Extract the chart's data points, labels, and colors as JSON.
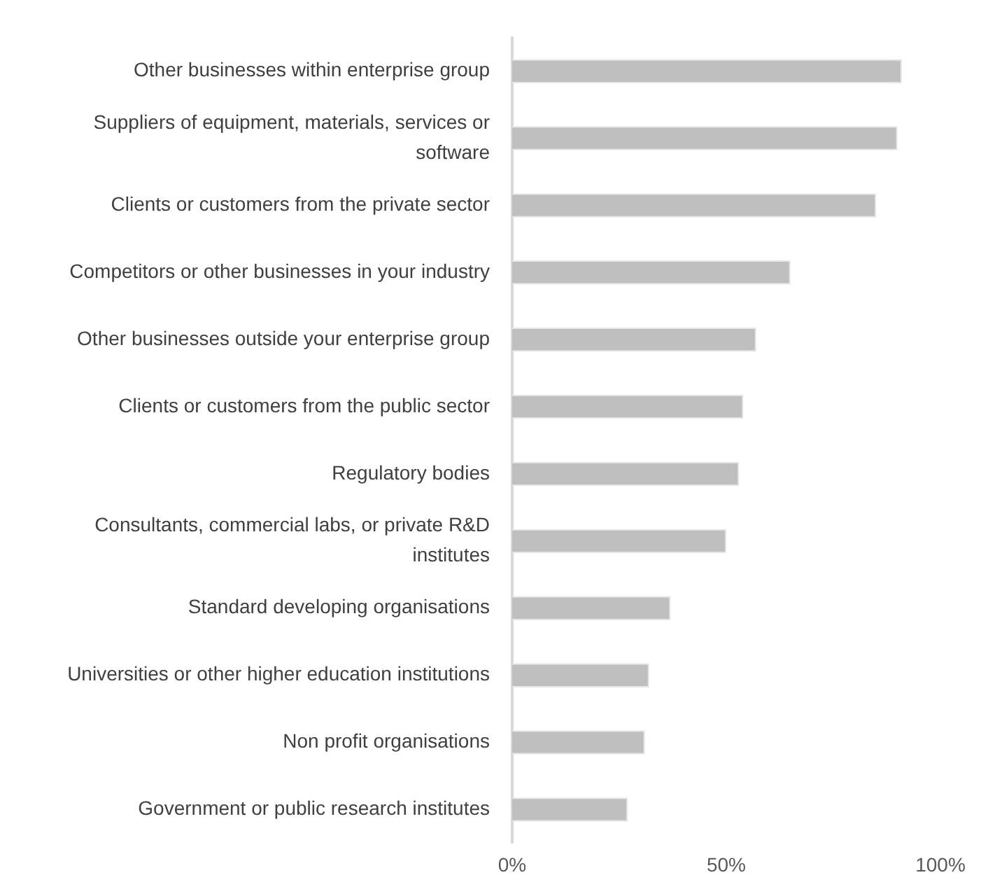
{
  "chart_data": {
    "type": "bar",
    "orientation": "horizontal",
    "categories": [
      "Other businesses within enterprise group",
      "Suppliers of equipment, materials, services or software",
      "Clients or customers from the private sector",
      "Competitors or other businesses in your industry",
      "Other businesses outside your enterprise group",
      "Clients or customers from the public sector",
      "Regulatory bodies",
      "Consultants, commercial labs, or private R&D institutes",
      "Standard developing organisations",
      "Universities or other higher education institutions",
      "Non profit organisations",
      "Government or public research institutes"
    ],
    "values": [
      91,
      90,
      85,
      65,
      57,
      54,
      53,
      50,
      37,
      32,
      31,
      27
    ],
    "color": "#bfbfbf",
    "xlim": [
      0,
      100
    ],
    "xticks": [
      {
        "value": 0,
        "label": "0%"
      },
      {
        "value": 50,
        "label": "50%"
      },
      {
        "value": 100,
        "label": "100%"
      }
    ],
    "grid": false,
    "legend": false
  }
}
